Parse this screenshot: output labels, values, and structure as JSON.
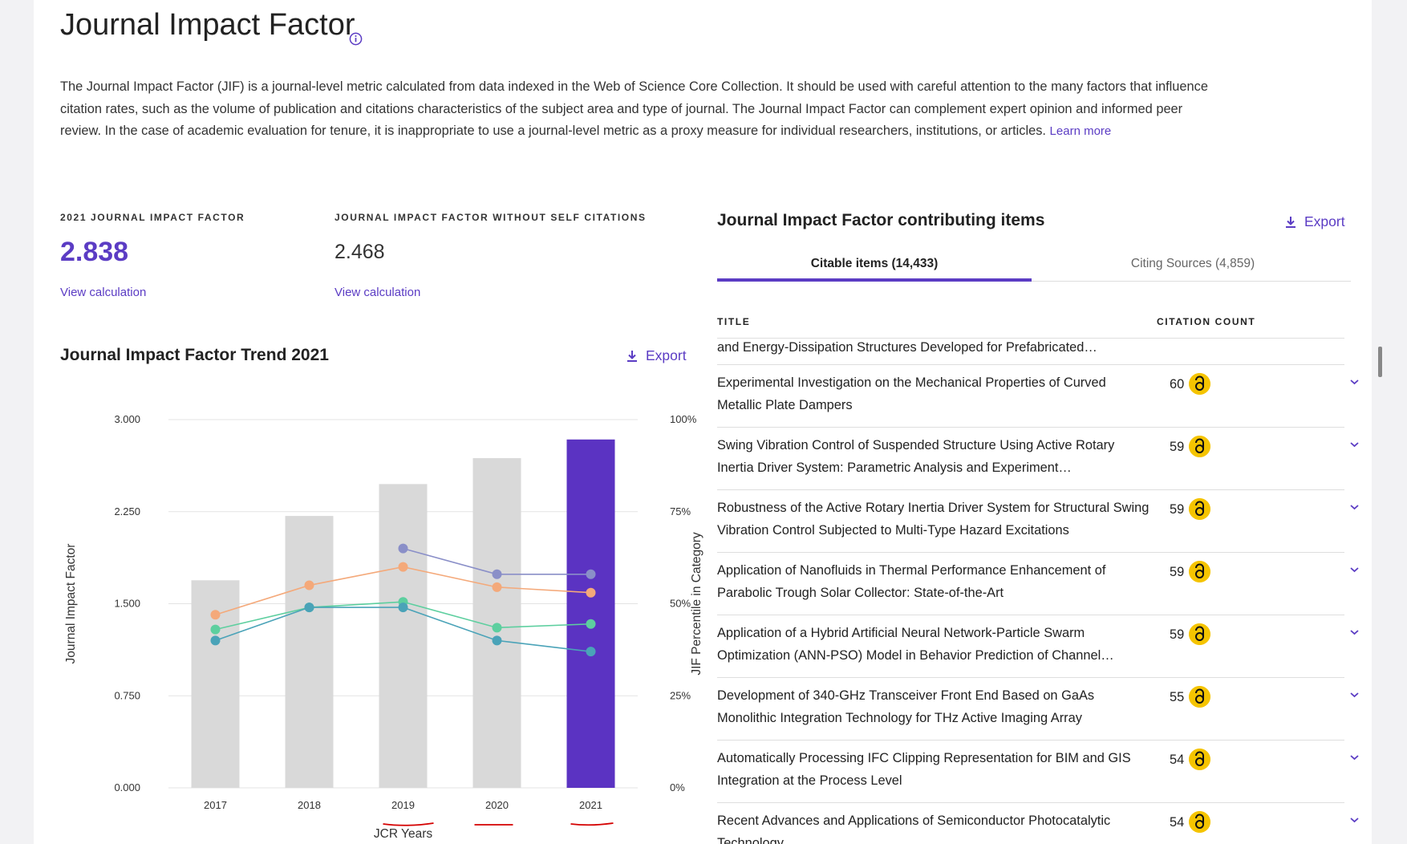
{
  "header": {
    "title": "Journal Impact Factor",
    "description": "The Journal Impact Factor (JIF) is a journal-level metric calculated from data indexed in the Web of Science Core Collection. It should be used with careful attention to the many factors that influence citation rates, such as the volume of publication and citations characteristics of the subject area and type of journal. The Journal Impact Factor can complement expert opinion and informed peer review. In the case of academic evaluation for tenure, it is inappropriate to use a journal-level metric as a proxy measure for individual researchers, institutions, or articles.",
    "learn_more": "Learn more"
  },
  "metrics": {
    "jif": {
      "label": "2021 JOURNAL IMPACT FACTOR",
      "value": "2.838",
      "link": "View calculation"
    },
    "jif_no_self": {
      "label": "JOURNAL IMPACT FACTOR WITHOUT SELF CITATIONS",
      "value": "2.468",
      "link": "View calculation"
    }
  },
  "trend": {
    "title": "Journal Impact Factor Trend 2021",
    "export": "Export"
  },
  "chart_data": {
    "type": "bar",
    "categories": [
      "2017",
      "2018",
      "2019",
      "2020",
      "2021"
    ],
    "series": [
      {
        "type": "bar",
        "axis": "left",
        "values": [
          1.691,
          2.215,
          2.475,
          2.686,
          2.838
        ]
      }
    ],
    "percentile_series": [
      {
        "type": "line",
        "axis": "right",
        "color": "#8a8fc8",
        "values": [
          null,
          null,
          65,
          58,
          58
        ]
      },
      {
        "type": "line",
        "axis": "right",
        "color": "#f4a97a",
        "values": [
          47,
          55,
          60,
          54.5,
          53
        ]
      },
      {
        "type": "line",
        "axis": "right",
        "color": "#5dcf9f",
        "values": [
          43,
          49,
          50.5,
          43.5,
          44.5
        ]
      },
      {
        "type": "line",
        "axis": "right",
        "color": "#4aa3b8",
        "values": [
          40,
          49,
          49,
          40,
          37
        ]
      }
    ],
    "colors": {
      "bar": "#d9d9d9",
      "highlight_bar": "#5b33c2"
    },
    "highlight_category": "2021",
    "y_ticks": [
      "3.000",
      "2.250",
      "1.500",
      "0.750",
      "0.000"
    ],
    "y_right_ticks": [
      "100%",
      "75%",
      "50%",
      "25%",
      "0%"
    ],
    "ylim": [
      0,
      3
    ],
    "y2lim": [
      0,
      100
    ],
    "xlabel": "JCR Years",
    "ylabel": "Journal Impact Factor",
    "y2label": "JIF Percentile in Category",
    "grid": true
  },
  "contributing": {
    "title": "Journal Impact Factor contributing items",
    "export": "Export",
    "tabs": [
      {
        "label": "Citable items (14,433)",
        "active": true
      },
      {
        "label": "Citing Sources (4,859)",
        "active": false
      }
    ],
    "columns": {
      "title": "TITLE",
      "count": "CITATION COUNT"
    },
    "rows": [
      {
        "title": "and Energy-Dissipation Structures Developed for Prefabricated…",
        "count": ""
      },
      {
        "title": "Experimental Investigation on the Mechanical Properties of Curved Metallic Plate Dampers",
        "count": "60"
      },
      {
        "title": "Swing Vibration Control of Suspended Structure Using Active Rotary Inertia Driver System: Parametric Analysis and Experiment…",
        "count": "59"
      },
      {
        "title": "Robustness of the Active Rotary Inertia Driver System for Structural Swing Vibration Control Subjected to Multi-Type Hazard Excitations",
        "count": "59"
      },
      {
        "title": "Application of Nanofluids in Thermal Performance Enhancement of Parabolic Trough Solar Collector: State-of-the-Art",
        "count": "59"
      },
      {
        "title": "Application of a Hybrid Artificial Neural Network-Particle Swarm Optimization (ANN-PSO) Model in Behavior Prediction of Channel…",
        "count": "59"
      },
      {
        "title": "Development of 340-GHz Transceiver Front End Based on GaAs Monolithic Integration Technology for THz Active Imaging Array",
        "count": "55"
      },
      {
        "title": "Automatically Processing IFC Clipping Representation for BIM and GIS Integration at the Process Level",
        "count": "54"
      },
      {
        "title": "Recent Advances and Applications of Semiconductor Photocatalytic Technology",
        "count": "54"
      }
    ]
  }
}
